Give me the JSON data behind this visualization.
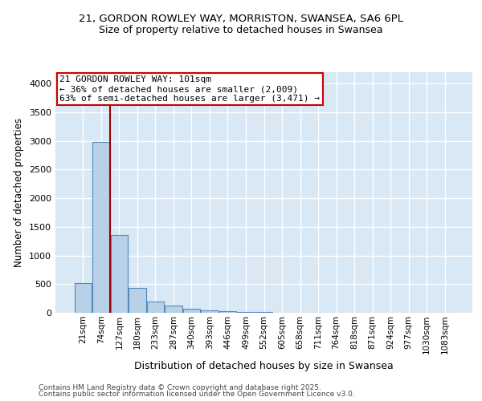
{
  "title1": "21, GORDON ROWLEY WAY, MORRISTON, SWANSEA, SA6 6PL",
  "title2": "Size of property relative to detached houses in Swansea",
  "xlabel": "Distribution of detached houses by size in Swansea",
  "ylabel": "Number of detached properties",
  "bar_labels": [
    "21sqm",
    "74sqm",
    "127sqm",
    "180sqm",
    "233sqm",
    "287sqm",
    "340sqm",
    "393sqm",
    "446sqm",
    "499sqm",
    "552sqm",
    "605sqm",
    "658sqm",
    "711sqm",
    "764sqm",
    "818sqm",
    "871sqm",
    "924sqm",
    "977sqm",
    "1030sqm",
    "1083sqm"
  ],
  "bar_values": [
    520,
    2980,
    1360,
    430,
    200,
    130,
    75,
    45,
    30,
    15,
    8,
    4,
    2,
    1,
    1,
    0,
    0,
    0,
    0,
    0,
    0
  ],
  "bar_color": "#b8d0e8",
  "bar_edge_color": "#5588bb",
  "background_color": "#d8e8f5",
  "grid_color": "#ffffff",
  "vline_color": "#990000",
  "annotation_text": "21 GORDON ROWLEY WAY: 101sqm\n← 36% of detached houses are smaller (2,009)\n63% of semi-detached houses are larger (3,471) →",
  "annotation_box_facecolor": "#ffffff",
  "annotation_box_edgecolor": "#cc0000",
  "footnote_line1": "Contains HM Land Registry data © Crown copyright and database right 2025.",
  "footnote_line2": "Contains public sector information licensed under the Open Government Licence v3.0.",
  "ylim_max": 4200,
  "yticks": [
    0,
    500,
    1000,
    1500,
    2000,
    2500,
    3000,
    3500,
    4000
  ]
}
